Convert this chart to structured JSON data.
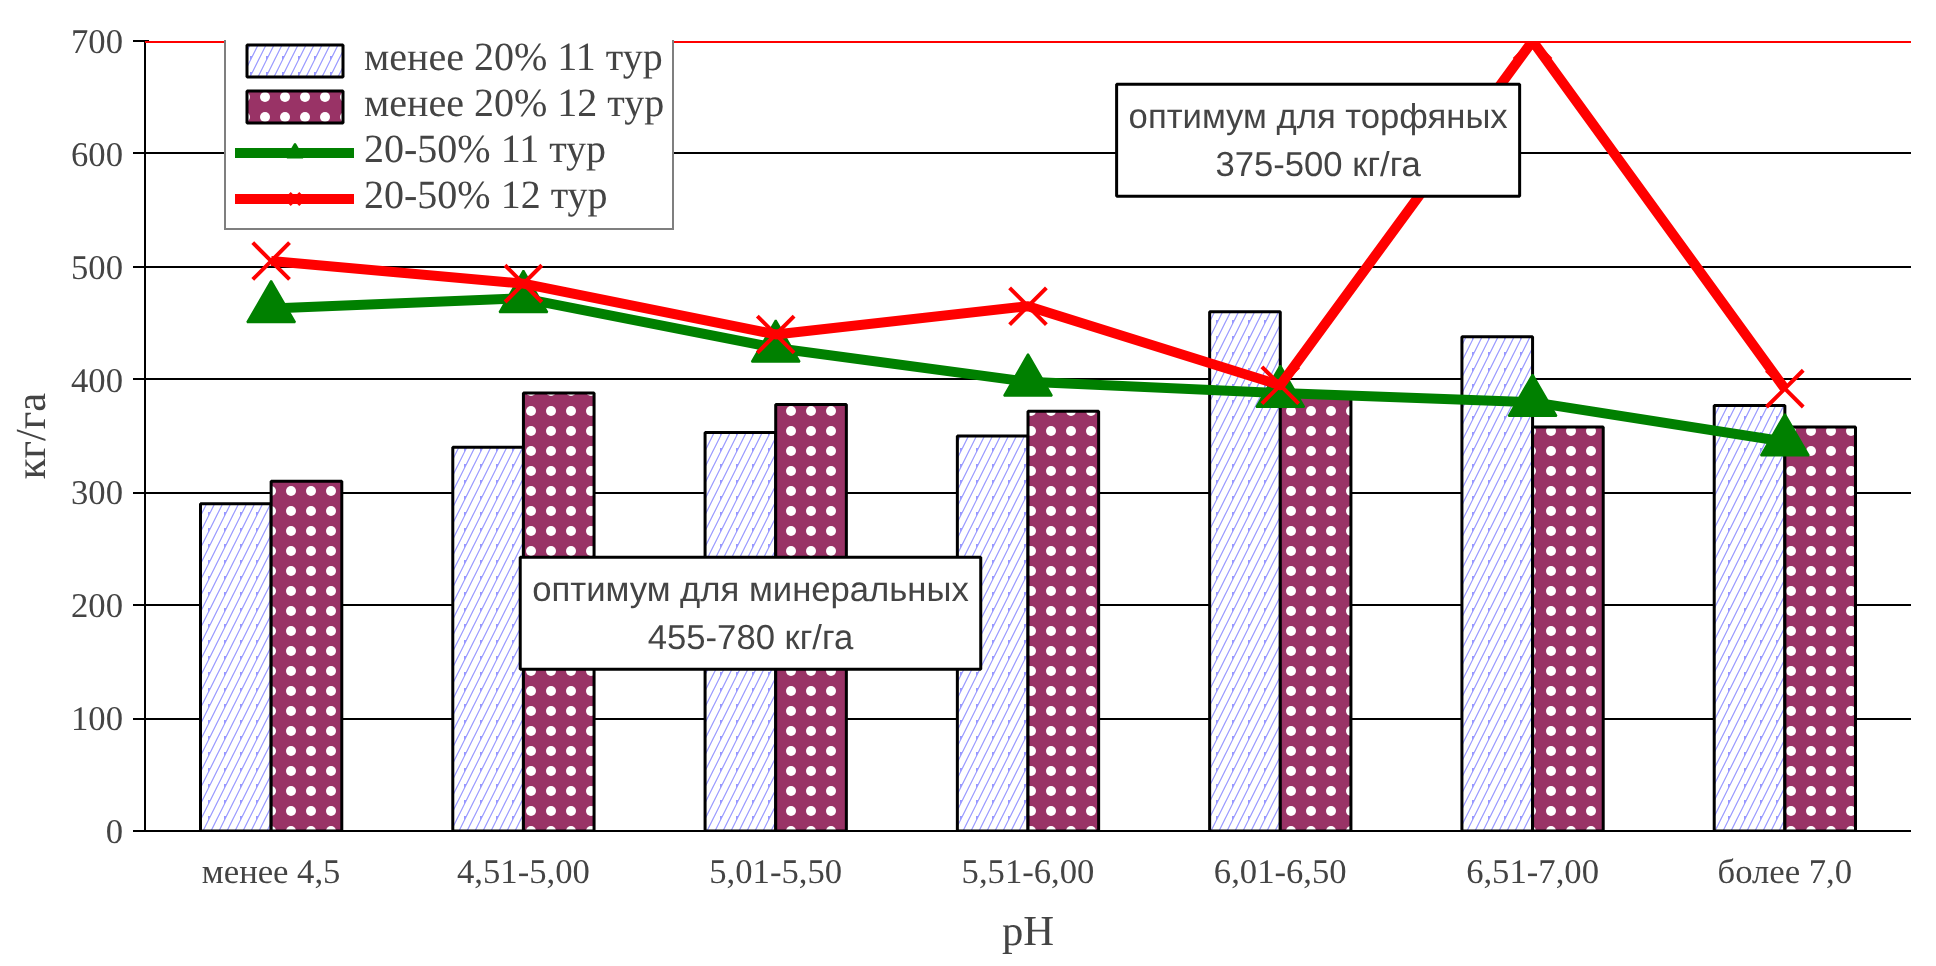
{
  "chart_data": {
    "type": "bar",
    "xlabel": "pH",
    "ylabel": "кг/га",
    "categories": [
      "менее 4,5",
      "4,51-5,00",
      "5,01-5,50",
      "5,51-6,00",
      "6,01-6,50",
      "6,51-7,00",
      "более 7,0"
    ],
    "series": [
      {
        "name": "менее 20% 11 тур",
        "color": "#9999ff",
        "values": [
          290,
          340,
          353,
          350,
          460,
          438,
          377
        ]
      },
      {
        "name": "менее 20% 12 тур",
        "color": "#993366",
        "values": [
          310,
          388,
          378,
          372,
          385,
          358,
          358
        ]
      },
      {
        "name": "20-50% 11 тур",
        "type": "line",
        "color": "#008000",
        "marker": "triangle",
        "values": [
          463,
          472,
          428,
          398,
          388,
          380,
          345
        ]
      },
      {
        "name": "20-50% 12 тур",
        "type": "line",
        "color": "#ff0000",
        "marker": "cross",
        "values": [
          505,
          485,
          440,
          465,
          395,
          700,
          392
        ]
      }
    ],
    "ylim": [
      0,
      700
    ],
    "yticks": [
      0,
      100,
      200,
      300,
      400,
      500,
      600,
      700
    ],
    "grid": "y",
    "legend": "top left",
    "ref_lines": [
      {
        "axis": "y",
        "value": 700,
        "color": "#ff0000"
      }
    ],
    "annotations": [
      "оптимум для торфяных\n375-500 кг/га",
      "оптимум для минеральных\n455-780 кг/га"
    ]
  }
}
